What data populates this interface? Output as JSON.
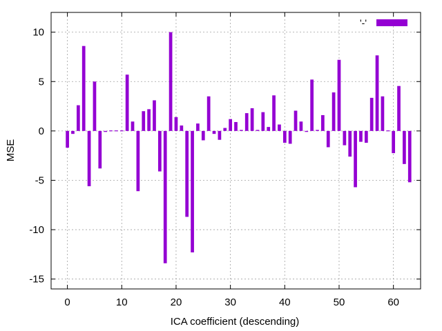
{
  "chart_data": {
    "type": "bar",
    "title": "",
    "xlabel": "ICA coefficient (descending)",
    "ylabel": "MSE",
    "xlim": [
      -3,
      65
    ],
    "ylim": [
      -16,
      12
    ],
    "xticks": [
      0,
      10,
      20,
      30,
      40,
      50,
      60
    ],
    "yticks": [
      -15,
      -10,
      -5,
      0,
      5,
      10
    ],
    "grid": true,
    "legend_position": "top-right",
    "bar_color": "#9400d3",
    "series": [
      {
        "name": "'-'",
        "x": [
          0,
          1,
          2,
          3,
          4,
          5,
          6,
          7,
          8,
          9,
          10,
          11,
          12,
          13,
          14,
          15,
          16,
          17,
          18,
          19,
          20,
          21,
          22,
          23,
          24,
          25,
          26,
          27,
          28,
          29,
          30,
          31,
          32,
          33,
          34,
          35,
          36,
          37,
          38,
          39,
          40,
          41,
          42,
          43,
          44,
          45,
          46,
          47,
          48,
          49,
          50,
          51,
          52,
          53,
          54,
          55,
          56,
          57,
          58,
          59,
          60,
          61,
          62,
          63
        ],
        "values": [
          -1.7,
          -0.3,
          2.6,
          8.6,
          -5.6,
          5.0,
          -3.8,
          -0.1,
          0.05,
          0.05,
          0.05,
          5.7,
          0.95,
          -6.1,
          2.0,
          2.2,
          3.1,
          -4.1,
          -13.4,
          10.0,
          1.4,
          0.55,
          -8.7,
          -12.3,
          0.75,
          -0.95,
          3.5,
          -0.3,
          -0.9,
          0.3,
          1.2,
          0.9,
          0.1,
          1.8,
          2.3,
          0.1,
          1.9,
          0.4,
          3.6,
          0.65,
          -1.2,
          -1.3,
          2.05,
          0.95,
          -0.1,
          5.2,
          0.1,
          1.6,
          -1.65,
          3.9,
          7.2,
          -1.45,
          -2.6,
          -5.7,
          -1.1,
          -1.2,
          3.35,
          7.65,
          3.5,
          0.05,
          -2.25,
          4.55,
          -3.35,
          -5.2
        ]
      }
    ]
  }
}
